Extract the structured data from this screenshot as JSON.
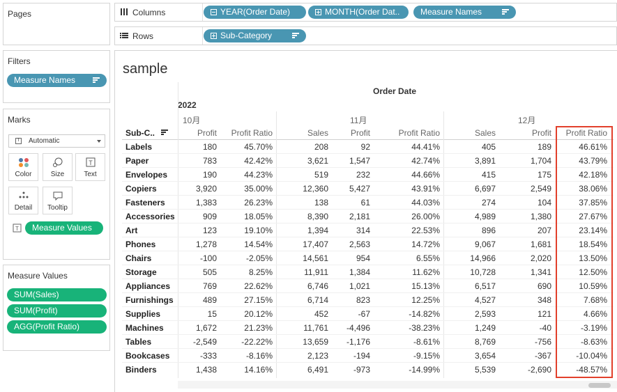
{
  "panels": {
    "pages": "Pages",
    "filters": "Filters",
    "marks": "Marks",
    "measure_values": "Measure Values"
  },
  "filters": {
    "pill": "Measure Names"
  },
  "marks": {
    "type": "Automatic",
    "buttons": {
      "color": "Color",
      "size": "Size",
      "text": "Text",
      "detail": "Detail",
      "tooltip": "Tooltip"
    },
    "text_pill": "Measure Values"
  },
  "measure_values_pills": [
    "SUM(Sales)",
    "SUM(Profit)",
    "AGG(Profit Ratio)"
  ],
  "shelves": {
    "columns_label": "Columns",
    "rows_label": "Rows",
    "columns": [
      "YEAR(Order Date)",
      "MONTH(Order Dat..",
      "Measure Names"
    ],
    "rows": [
      "Sub-Category"
    ]
  },
  "view": {
    "title": "sample",
    "order_date_header": "Order Date",
    "year": "2022",
    "rows_header": "Sub-C..",
    "months": [
      "10月",
      "11月",
      "12月"
    ],
    "measure_headers": [
      "Profit",
      "Profit Ratio",
      "Sales",
      "Profit",
      "Profit Ratio",
      "Sales",
      "Profit",
      "Profit Ratio"
    ],
    "rows": [
      {
        "cat": "Labels",
        "v": [
          "180",
          "45.70%",
          "208",
          "92",
          "44.41%",
          "405",
          "189",
          "46.61%"
        ]
      },
      {
        "cat": "Paper",
        "v": [
          "783",
          "42.42%",
          "3,621",
          "1,547",
          "42.74%",
          "3,891",
          "1,704",
          "43.79%"
        ]
      },
      {
        "cat": "Envelopes",
        "v": [
          "190",
          "44.23%",
          "519",
          "232",
          "44.66%",
          "415",
          "175",
          "42.18%"
        ]
      },
      {
        "cat": "Copiers",
        "v": [
          "3,920",
          "35.00%",
          "12,360",
          "5,427",
          "43.91%",
          "6,697",
          "2,549",
          "38.06%"
        ]
      },
      {
        "cat": "Fasteners",
        "v": [
          "1,383",
          "26.23%",
          "138",
          "61",
          "44.03%",
          "274",
          "104",
          "37.85%"
        ]
      },
      {
        "cat": "Accessories",
        "v": [
          "909",
          "18.05%",
          "8,390",
          "2,181",
          "26.00%",
          "4,989",
          "1,380",
          "27.67%"
        ]
      },
      {
        "cat": "Art",
        "v": [
          "123",
          "19.10%",
          "1,394",
          "314",
          "22.53%",
          "896",
          "207",
          "23.14%"
        ]
      },
      {
        "cat": "Phones",
        "v": [
          "1,278",
          "14.54%",
          "17,407",
          "2,563",
          "14.72%",
          "9,067",
          "1,681",
          "18.54%"
        ]
      },
      {
        "cat": "Chairs",
        "v": [
          "-100",
          "-2.05%",
          "14,561",
          "954",
          "6.55%",
          "14,966",
          "2,020",
          "13.50%"
        ]
      },
      {
        "cat": "Storage",
        "v": [
          "505",
          "8.25%",
          "11,911",
          "1,384",
          "11.62%",
          "10,728",
          "1,341",
          "12.50%"
        ]
      },
      {
        "cat": "Appliances",
        "v": [
          "769",
          "22.62%",
          "6,746",
          "1,021",
          "15.13%",
          "6,517",
          "690",
          "10.59%"
        ]
      },
      {
        "cat": "Furnishings",
        "v": [
          "489",
          "27.15%",
          "6,714",
          "823",
          "12.25%",
          "4,527",
          "348",
          "7.68%"
        ]
      },
      {
        "cat": "Supplies",
        "v": [
          "15",
          "20.12%",
          "452",
          "-67",
          "-14.82%",
          "2,593",
          "121",
          "4.66%"
        ]
      },
      {
        "cat": "Machines",
        "v": [
          "1,672",
          "21.23%",
          "11,761",
          "-4,496",
          "-38.23%",
          "1,249",
          "-40",
          "-3.19%"
        ]
      },
      {
        "cat": "Tables",
        "v": [
          "-2,549",
          "-22.22%",
          "13,659",
          "-1,176",
          "-8.61%",
          "8,769",
          "-756",
          "-8.63%"
        ]
      },
      {
        "cat": "Bookcases",
        "v": [
          "-333",
          "-8.16%",
          "2,123",
          "-194",
          "-9.15%",
          "3,654",
          "-367",
          "-10.04%"
        ]
      },
      {
        "cat": "Binders",
        "v": [
          "1,438",
          "14.16%",
          "6,491",
          "-973",
          "-14.99%",
          "5,539",
          "-2,690",
          "-48.57%"
        ]
      }
    ]
  },
  "colors": {
    "blue_pill": "#4996b2",
    "green_pill": "#18b379",
    "highlight": "#e2402b"
  }
}
